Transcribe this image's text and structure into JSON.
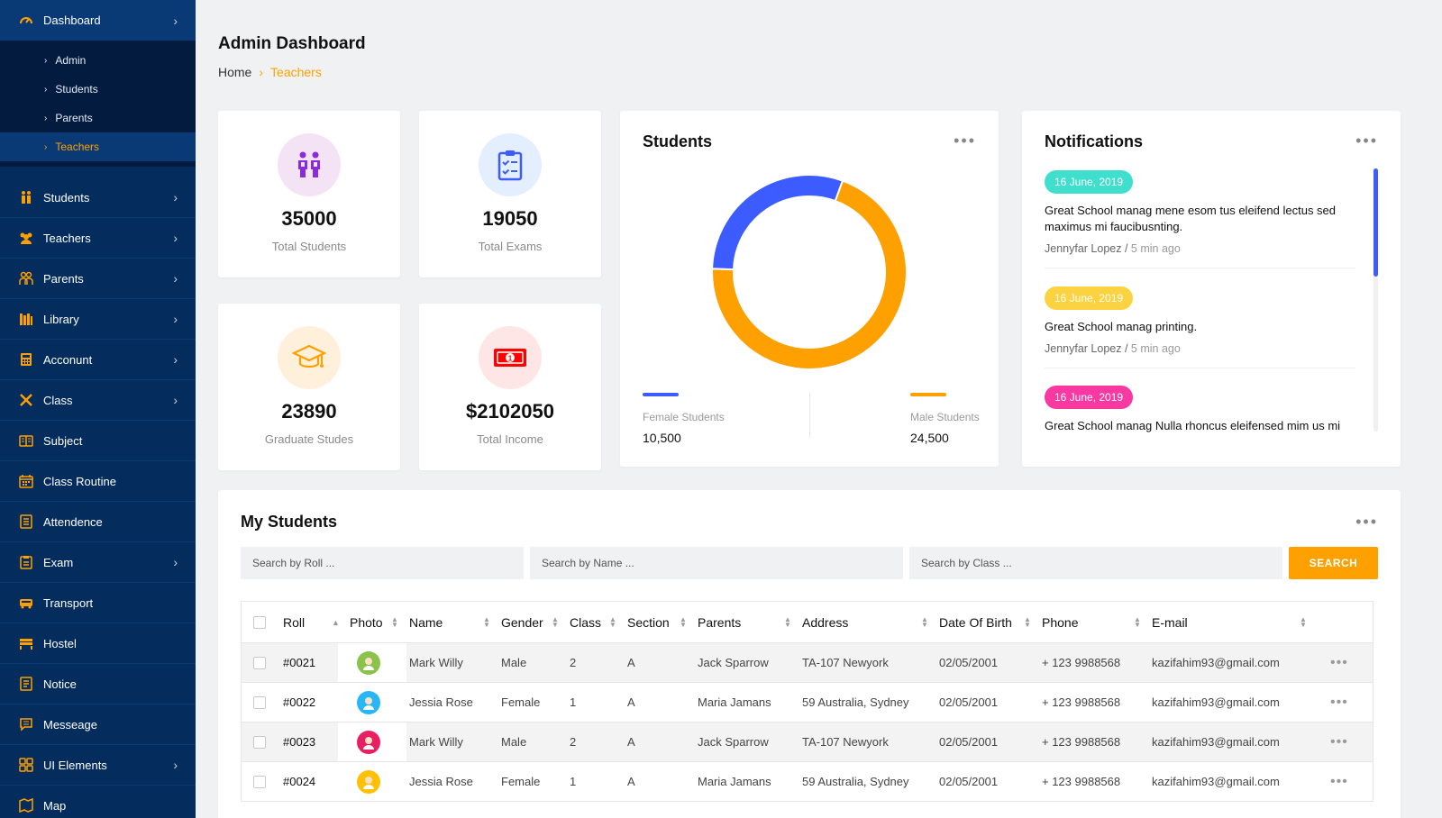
{
  "sidebar": {
    "top": {
      "label": "Dashboard"
    },
    "sub_items": [
      {
        "label": "Admin",
        "active": false
      },
      {
        "label": "Students",
        "active": false
      },
      {
        "label": "Parents",
        "active": false
      },
      {
        "label": "Teachers",
        "active": true
      }
    ],
    "items": [
      {
        "label": "Students",
        "icon": "students-icon",
        "has_arrow": true
      },
      {
        "label": "Teachers",
        "icon": "teachers-icon",
        "has_arrow": true
      },
      {
        "label": "Parents",
        "icon": "parents-icon",
        "has_arrow": true
      },
      {
        "label": "Library",
        "icon": "library-icon",
        "has_arrow": true
      },
      {
        "label": "Acconunt",
        "icon": "account-icon",
        "has_arrow": true
      },
      {
        "label": "Class",
        "icon": "class-icon",
        "has_arrow": true
      },
      {
        "label": "Subject",
        "icon": "subject-icon",
        "has_arrow": false
      },
      {
        "label": "Class Routine",
        "icon": "routine-icon",
        "has_arrow": false
      },
      {
        "label": "Attendence",
        "icon": "attendance-icon",
        "has_arrow": false
      },
      {
        "label": "Exam",
        "icon": "exam-icon",
        "has_arrow": true
      },
      {
        "label": "Transport",
        "icon": "transport-icon",
        "has_arrow": false
      },
      {
        "label": "Hostel",
        "icon": "hostel-icon",
        "has_arrow": false
      },
      {
        "label": "Notice",
        "icon": "notice-icon",
        "has_arrow": false
      },
      {
        "label": "Messeage",
        "icon": "message-icon",
        "has_arrow": false
      },
      {
        "label": "UI Elements",
        "icon": "ui-elements-icon",
        "has_arrow": true
      },
      {
        "label": "Map",
        "icon": "map-icon",
        "has_arrow": false
      }
    ]
  },
  "header": {
    "title": "Admin Dashboard",
    "breadcrumb": {
      "home": "Home",
      "current": "Teachers"
    }
  },
  "stats": [
    {
      "value": "35000",
      "label": "Total Students",
      "icon": "students-pair-icon",
      "color": "#8a2be2",
      "bg": "#f3e3f5"
    },
    {
      "value": "19050",
      "label": "Total Exams",
      "icon": "clipboard-check-icon",
      "color": "#3d5cff",
      "bg": "#e3efff"
    },
    {
      "value": "23890",
      "label": "Graduate Studes",
      "icon": "graduation-cap-icon",
      "color": "#ffa001",
      "bg": "#fff0dc"
    },
    {
      "value": "$2102050",
      "label": "Total Income",
      "icon": "money-bill-icon",
      "color": "#ff0000",
      "bg": "#ffe6e6"
    }
  ],
  "students_card": {
    "title": "Students",
    "legend": [
      {
        "name": "Female Students",
        "value": "10,500",
        "color": "#3d5cff"
      },
      {
        "name": "Male Students",
        "value": "24,500",
        "color": "#ffa001"
      }
    ]
  },
  "chart_data": {
    "type": "pie",
    "variant": "donut",
    "categories": [
      "Female Students",
      "Male Students"
    ],
    "values": [
      10500,
      24500
    ],
    "colors": [
      "#3d5cff",
      "#ffa001"
    ]
  },
  "notifications": {
    "title": "Notifications",
    "items": [
      {
        "date": "16 June, 2019",
        "color": "#40dfcd",
        "text": "Great School manag mene esom tus eleifend lectus sed maximus mi faucibusnting.",
        "author": "Jennyfar Lopez",
        "time": "5 min ago"
      },
      {
        "date": "16 June, 2019",
        "color": "#fbd341",
        "text": "Great School manag printing.",
        "author": "Jennyfar Lopez",
        "time": "5 min ago"
      },
      {
        "date": "16 June, 2019",
        "color": "#f939a1",
        "text": "Great School manag Nulla rhoncus eleifensed mim us mi",
        "author": "",
        "time": ""
      }
    ]
  },
  "my_students": {
    "title": "My Students",
    "search": {
      "roll_placeholder": "Search by Roll ...",
      "name_placeholder": "Search by Name ...",
      "class_placeholder": "Search by Class ...",
      "button_label": "SEARCH"
    },
    "columns": [
      "Roll",
      "Photo",
      "Name",
      "Gender",
      "Class",
      "Section",
      "Parents",
      "Address",
      "Date Of Birth",
      "Phone",
      "E-mail"
    ],
    "rows": [
      {
        "roll": "#0021",
        "name": "Mark Willy",
        "gender": "Male",
        "class": "2",
        "section": "A",
        "parents": "Jack Sparrow",
        "address": "TA-107 Newyork",
        "dob": "02/05/2001",
        "phone": "+ 123 9988568",
        "email": "kazifahim93@gmail.com",
        "avatar_color": "#8bc34a"
      },
      {
        "roll": "#0022",
        "name": "Jessia Rose",
        "gender": "Female",
        "class": "1",
        "section": "A",
        "parents": "Maria Jamans",
        "address": "59 Australia, Sydney",
        "dob": "02/05/2001",
        "phone": "+ 123 9988568",
        "email": "kazifahim93@gmail.com",
        "avatar_color": "#29b6f6"
      },
      {
        "roll": "#0023",
        "name": "Mark Willy",
        "gender": "Male",
        "class": "2",
        "section": "A",
        "parents": "Jack Sparrow",
        "address": "TA-107 Newyork",
        "dob": "02/05/2001",
        "phone": "+ 123 9988568",
        "email": "kazifahim93@gmail.com",
        "avatar_color": "#e91e63"
      },
      {
        "roll": "#0024",
        "name": "Jessia Rose",
        "gender": "Female",
        "class": "1",
        "section": "A",
        "parents": "Maria Jamans",
        "address": "59 Australia, Sydney",
        "dob": "02/05/2001",
        "phone": "+ 123 9988568",
        "email": "kazifahim93@gmail.com",
        "avatar_color": "#ffc107"
      }
    ]
  }
}
